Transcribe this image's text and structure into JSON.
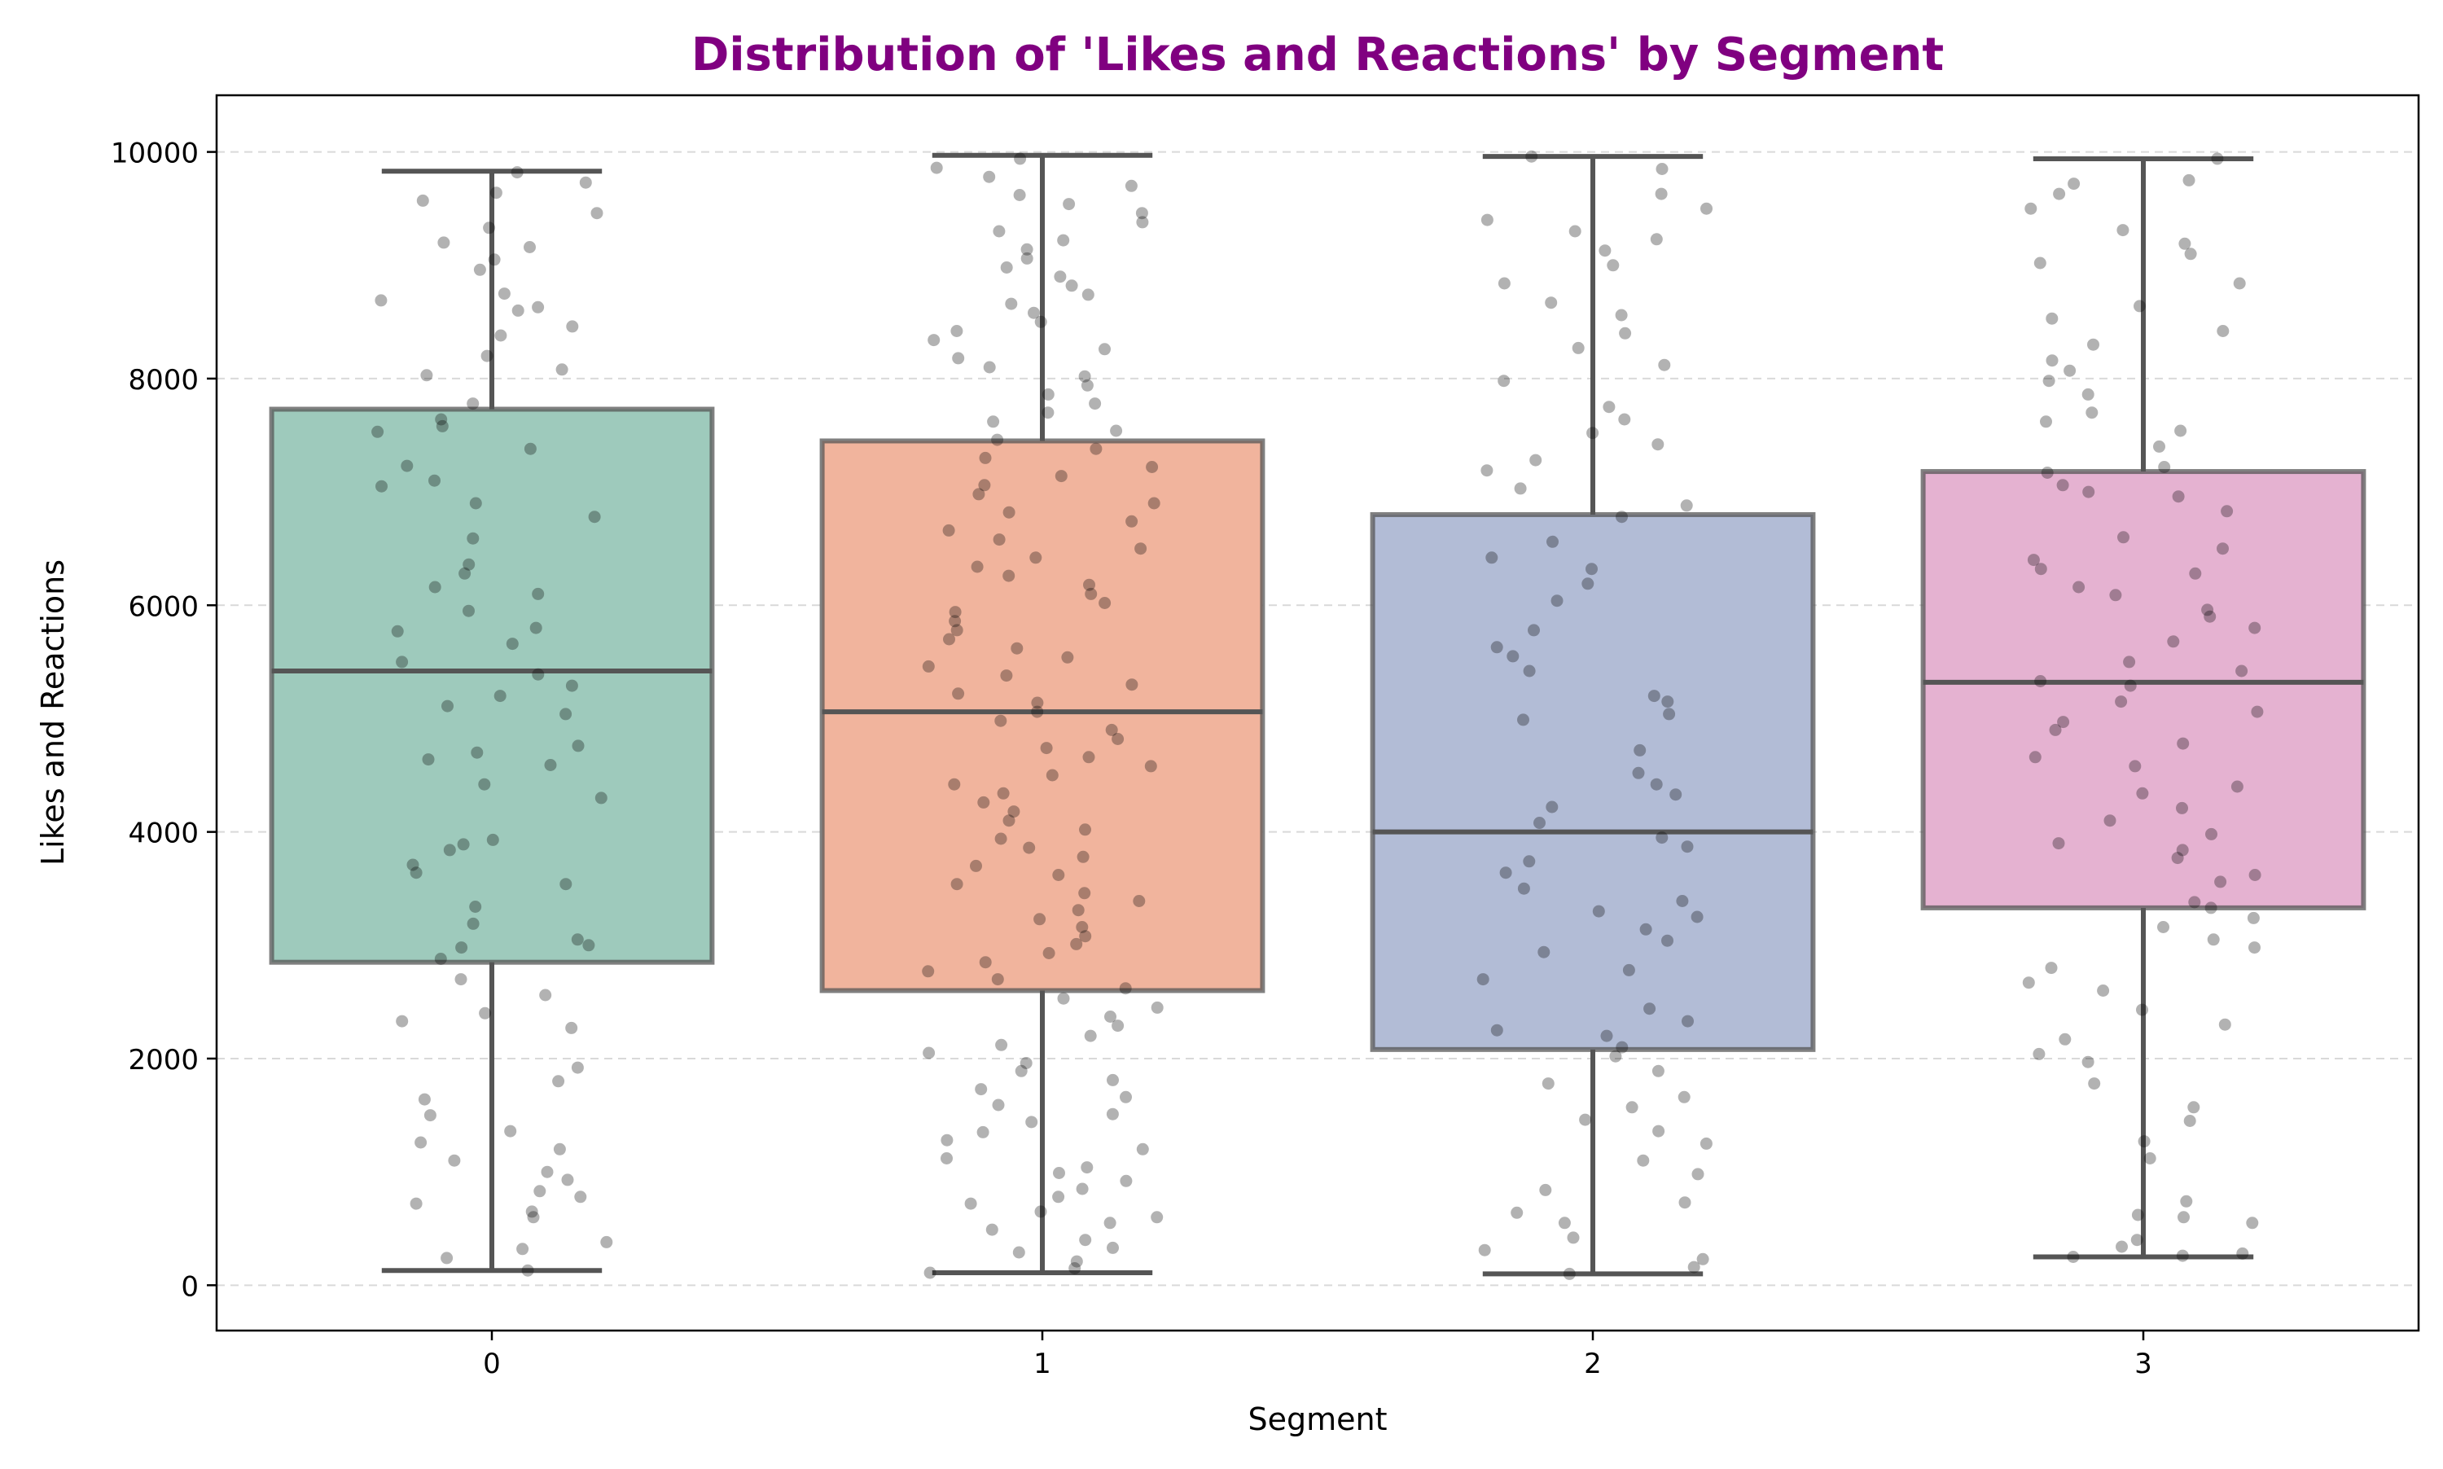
{
  "chart_data": {
    "type": "box",
    "title": "Distribution of 'Likes and Reactions' by Segment",
    "xlabel": "Segment",
    "ylabel": "Likes and Reactions",
    "categories": [
      "0",
      "1",
      "2",
      "3"
    ],
    "ylim": [
      -400,
      10500
    ],
    "yticks": [
      0,
      2000,
      4000,
      6000,
      8000,
      10000
    ],
    "grid": {
      "y": true,
      "x": false,
      "style": "dashed"
    },
    "colors": {
      "title": "#800080",
      "box_fills": [
        "#9ecabc",
        "#f1b49d",
        "#b2bcd6",
        "#e5b2d1"
      ],
      "box_edge": "#555555",
      "points": "#000000"
    },
    "series": [
      {
        "category": "0",
        "whisker_low": 130,
        "q1": 2850,
        "median": 5420,
        "q3": 7730,
        "whisker_high": 9830
      },
      {
        "category": "1",
        "whisker_low": 110,
        "q1": 2600,
        "median": 5060,
        "q3": 7450,
        "whisker_high": 9970
      },
      {
        "category": "2",
        "whisker_low": 100,
        "q1": 2080,
        "median": 4000,
        "q3": 6800,
        "whisker_high": 9960
      },
      {
        "category": "3",
        "whisker_low": 250,
        "q1": 3330,
        "median": 5320,
        "q3": 7180,
        "whisker_high": 9940
      }
    ],
    "points": [
      {
        "category": "0",
        "values": [
          130,
          240,
          320,
          380,
          600,
          650,
          720,
          780,
          830,
          930,
          1000,
          1100,
          1200,
          1260,
          1360,
          1500,
          1640,
          1800,
          1920,
          2270,
          2330,
          2400,
          2560,
          2700,
          2880,
          2980,
          3000,
          3050,
          3190,
          3340,
          3540,
          3640,
          3710,
          3840,
          3890,
          3930,
          4300,
          4420,
          4590,
          4640,
          4700,
          4760,
          5040,
          5110,
          5200,
          5290,
          5390,
          5500,
          5660,
          5770,
          5800,
          5950,
          6100,
          6160,
          6280,
          6360,
          6590,
          6780,
          6900,
          7050,
          7100,
          7230,
          7380,
          7530,
          7580,
          7640,
          7780,
          8030,
          8080,
          8200,
          8380,
          8460,
          8600,
          8630,
          8690,
          8750,
          8960,
          9050,
          9160,
          9200,
          9330,
          9460,
          9570,
          9640,
          9730,
          9820
        ]
      },
      {
        "category": "1",
        "values": [
          110,
          150,
          210,
          290,
          330,
          400,
          490,
          550,
          600,
          650,
          720,
          780,
          850,
          920,
          990,
          1040,
          1120,
          1200,
          1280,
          1350,
          1440,
          1510,
          1590,
          1660,
          1730,
          1810,
          1890,
          1960,
          2050,
          2120,
          2200,
          2290,
          2370,
          2450,
          2530,
          2620,
          2700,
          2770,
          2850,
          2930,
          3010,
          3080,
          3160,
          3230,
          3310,
          3390,
          3460,
          3540,
          3620,
          3700,
          3780,
          3860,
          3940,
          4020,
          4100,
          4180,
          4260,
          4340,
          4420,
          4500,
          4580,
          4660,
          4740,
          4820,
          4900,
          4980,
          5060,
          5140,
          5220,
          5300,
          5380,
          5460,
          5540,
          5620,
          5700,
          5780,
          5860,
          5940,
          6020,
          6100,
          6180,
          6260,
          6340,
          6420,
          6500,
          6580,
          6660,
          6740,
          6820,
          6900,
          6980,
          7060,
          7140,
          7220,
          7300,
          7380,
          7460,
          7540,
          7620,
          7700,
          7780,
          7860,
          7940,
          8020,
          8100,
          8180,
          8260,
          8340,
          8420,
          8500,
          8580,
          8660,
          8740,
          8820,
          8900,
          8980,
          9060,
          9140,
          9220,
          9300,
          9380,
          9460,
          9540,
          9620,
          9700,
          9780,
          9860,
          9940
        ]
      },
      {
        "category": "2",
        "values": [
          100,
          160,
          230,
          310,
          420,
          550,
          640,
          730,
          840,
          980,
          1100,
          1250,
          1360,
          1460,
          1570,
          1660,
          1780,
          1890,
          2020,
          2100,
          2200,
          2250,
          2330,
          2440,
          2700,
          2780,
          2940,
          3040,
          3140,
          3250,
          3300,
          3390,
          3500,
          3640,
          3740,
          3870,
          3950,
          4080,
          4220,
          4330,
          4420,
          4520,
          4720,
          4990,
          5040,
          5150,
          5200,
          5420,
          5550,
          5630,
          5780,
          6040,
          6190,
          6320,
          6420,
          6560,
          6780,
          6880,
          7030,
          7190,
          7280,
          7420,
          7520,
          7640,
          7750,
          7980,
          8120,
          8270,
          8400,
          8560,
          8670,
          8840,
          9000,
          9130,
          9230,
          9300,
          9400,
          9500,
          9630,
          9850,
          9960
        ]
      },
      {
        "category": "3",
        "values": [
          250,
          260,
          280,
          340,
          400,
          550,
          600,
          620,
          740,
          1120,
          1270,
          1450,
          1570,
          1780,
          1970,
          2040,
          2170,
          2300,
          2430,
          2600,
          2670,
          2800,
          2980,
          3050,
          3160,
          3240,
          3330,
          3380,
          3560,
          3620,
          3770,
          3840,
          3900,
          3980,
          4100,
          4210,
          4340,
          4400,
          4580,
          4660,
          4780,
          4900,
          4970,
          5060,
          5150,
          5290,
          5330,
          5420,
          5500,
          5680,
          5800,
          5900,
          5960,
          6090,
          6160,
          6280,
          6320,
          6400,
          6500,
          6600,
          6830,
          6960,
          7000,
          7060,
          7170,
          7220,
          7400,
          7540,
          7620,
          7700,
          7860,
          7980,
          8070,
          8160,
          8300,
          8420,
          8530,
          8640,
          8840,
          9020,
          9100,
          9190,
          9310,
          9500,
          9630,
          9720,
          9750,
          9940
        ]
      }
    ]
  }
}
